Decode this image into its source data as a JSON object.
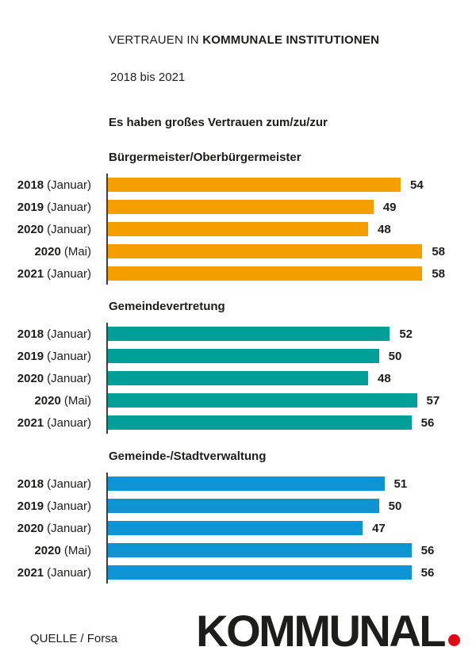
{
  "page": {
    "title_regular": "VERTRAUEN IN ",
    "title_bold": "KOMMUNALE INSTITUTIONEN",
    "subtitle": "2018 bis 2021",
    "lead": "Es haben großes Vertrauen zum/zu/zur"
  },
  "footer": {
    "source": "QUELLE / Forsa",
    "logo_text": "KOMMUNAL"
  },
  "colors": {
    "text": "#1d1d1b",
    "axis_line": "#3f3f3e",
    "logo_dot": "#e30613",
    "orange": "#f59e00",
    "teal": "#00a099",
    "blue": "#0e93d3"
  },
  "chart_data": {
    "type": "bar",
    "orientation": "horizontal",
    "title": "VERTRAUEN IN KOMMUNALE INSTITUTIONEN",
    "subtitle": "2018 bis 2021",
    "lead": "Es haben großes Vertrauen zum/zu/zur",
    "categories": [
      "2018 (Januar)",
      "2019 (Januar)",
      "2020 (Januar)",
      "2020 (Mai)",
      "2021 (Januar)"
    ],
    "category_parts": [
      {
        "year": "2018",
        "period": "(Januar)"
      },
      {
        "year": "2019",
        "period": "(Januar)"
      },
      {
        "year": "2020",
        "period": "(Januar)"
      },
      {
        "year": "2020",
        "period": "(Mai)"
      },
      {
        "year": "2021",
        "period": "(Januar)"
      }
    ],
    "series": [
      {
        "name": "Bürgermeister/Oberbürgermeister",
        "color": "#f59e00",
        "values": [
          54,
          49,
          48,
          58,
          58
        ]
      },
      {
        "name": "Gemeindevertretung",
        "color": "#00a099",
        "values": [
          52,
          50,
          48,
          57,
          56
        ]
      },
      {
        "name": "Gemeinde-/Stadtverwaltung",
        "color": "#0e93d3",
        "values": [
          51,
          50,
          47,
          56,
          56
        ]
      }
    ],
    "xlim": [
      0,
      60
    ],
    "grid": false,
    "value_labels": true,
    "legend": "none",
    "source": "QUELLE / Forsa"
  }
}
